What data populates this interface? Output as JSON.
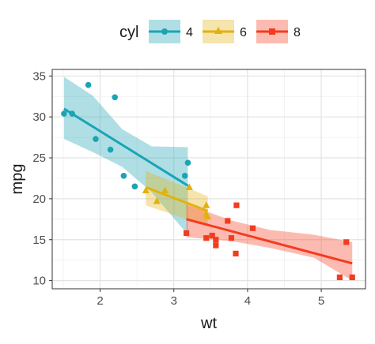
{
  "chart_data": {
    "type": "scatter",
    "xlabel": "wt",
    "ylabel": "mpg",
    "xlim": [
      1.35,
      5.6
    ],
    "ylim": [
      9.0,
      35.8
    ],
    "xticks": [
      2,
      3,
      4,
      5
    ],
    "yticks": [
      10,
      15,
      20,
      25,
      30,
      35
    ],
    "grid": true,
    "legend": {
      "title": "cyl",
      "position": "top"
    },
    "series": [
      {
        "name": "4",
        "color": "#1AA4B5",
        "marker": "circle",
        "points": [
          [
            1.51,
            30.4
          ],
          [
            1.62,
            30.4
          ],
          [
            1.84,
            33.9
          ],
          [
            1.94,
            27.3
          ],
          [
            2.14,
            26.0
          ],
          [
            2.2,
            32.4
          ],
          [
            2.32,
            22.8
          ],
          [
            2.47,
            21.5
          ],
          [
            3.15,
            22.8
          ],
          [
            3.19,
            24.4
          ]
        ],
        "fit": {
          "x": [
            1.51,
            3.19
          ],
          "y": [
            31.0,
            21.6
          ]
        },
        "band": {
          "x": [
            1.51,
            1.9,
            2.3,
            2.7,
            3.19
          ],
          "lower": [
            27.3,
            25.7,
            23.9,
            20.8,
            15.6
          ],
          "upper": [
            34.9,
            32.6,
            28.5,
            26.4,
            26.3
          ]
        }
      },
      {
        "name": "6",
        "color": "#E3B10F",
        "marker": "triangle",
        "points": [
          [
            2.62,
            21.0
          ],
          [
            2.77,
            19.7
          ],
          [
            2.88,
            21.0
          ],
          [
            3.21,
            21.4
          ],
          [
            3.44,
            18.1
          ],
          [
            3.44,
            19.2
          ],
          [
            3.46,
            17.8
          ]
        ],
        "fit": {
          "x": [
            2.62,
            3.46
          ],
          "y": [
            21.4,
            18.5
          ]
        },
        "band": {
          "x": [
            2.62,
            3.46
          ],
          "lower": [
            19.2,
            16.6
          ],
          "upper": [
            23.4,
            20.3
          ]
        }
      },
      {
        "name": "8",
        "color": "#F53B1F",
        "marker": "square",
        "points": [
          [
            3.17,
            15.8
          ],
          [
            3.44,
            15.2
          ],
          [
            3.52,
            15.5
          ],
          [
            3.57,
            14.3
          ],
          [
            3.57,
            15.0
          ],
          [
            3.73,
            17.3
          ],
          [
            3.78,
            15.2
          ],
          [
            3.84,
            13.3
          ],
          [
            3.85,
            19.2
          ],
          [
            4.07,
            16.4
          ],
          [
            5.25,
            10.4
          ],
          [
            5.34,
            14.7
          ],
          [
            5.42,
            10.4
          ]
        ],
        "fit": {
          "x": [
            3.17,
            5.42
          ],
          "y": [
            17.5,
            12.1
          ]
        },
        "band": {
          "x": [
            3.17,
            3.8,
            4.3,
            4.9,
            5.42
          ],
          "lower": [
            15.3,
            14.8,
            14.0,
            12.8,
            10.0
          ],
          "upper": [
            19.3,
            17.3,
            16.2,
            15.6,
            14.7
          ]
        }
      }
    ]
  }
}
